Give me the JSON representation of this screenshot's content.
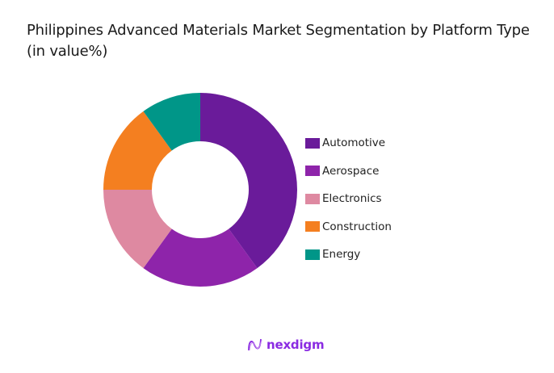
{
  "title": "Philippines Advanced Materials Market Segmentation by Platform Type (in value%)",
  "chart_data": {
    "type": "pie",
    "subtype": "donut",
    "title": "Philippines Advanced Materials Market Segmentation by Platform Type (in value%)",
    "categories": [
      "Automotive",
      "Aerospace",
      "Electronics",
      "Construction",
      "Energy"
    ],
    "values": [
      40,
      20,
      15,
      15,
      10
    ],
    "colors": [
      "#6a1b9a",
      "#8e24aa",
      "#de89a1",
      "#f47f20",
      "#009688"
    ],
    "start_angle": "12 o'clock",
    "direction": "clockwise",
    "legend_position": "right"
  },
  "legend": {
    "items": [
      {
        "label": "Automotive",
        "color": "#6a1b9a"
      },
      {
        "label": "Aerospace",
        "color": "#8e24aa"
      },
      {
        "label": "Electronics",
        "color": "#de89a1"
      },
      {
        "label": "Construction",
        "color": "#f47f20"
      },
      {
        "label": "Energy",
        "color": "#009688"
      }
    ]
  },
  "branding": {
    "logo_text": "nexdigm"
  }
}
